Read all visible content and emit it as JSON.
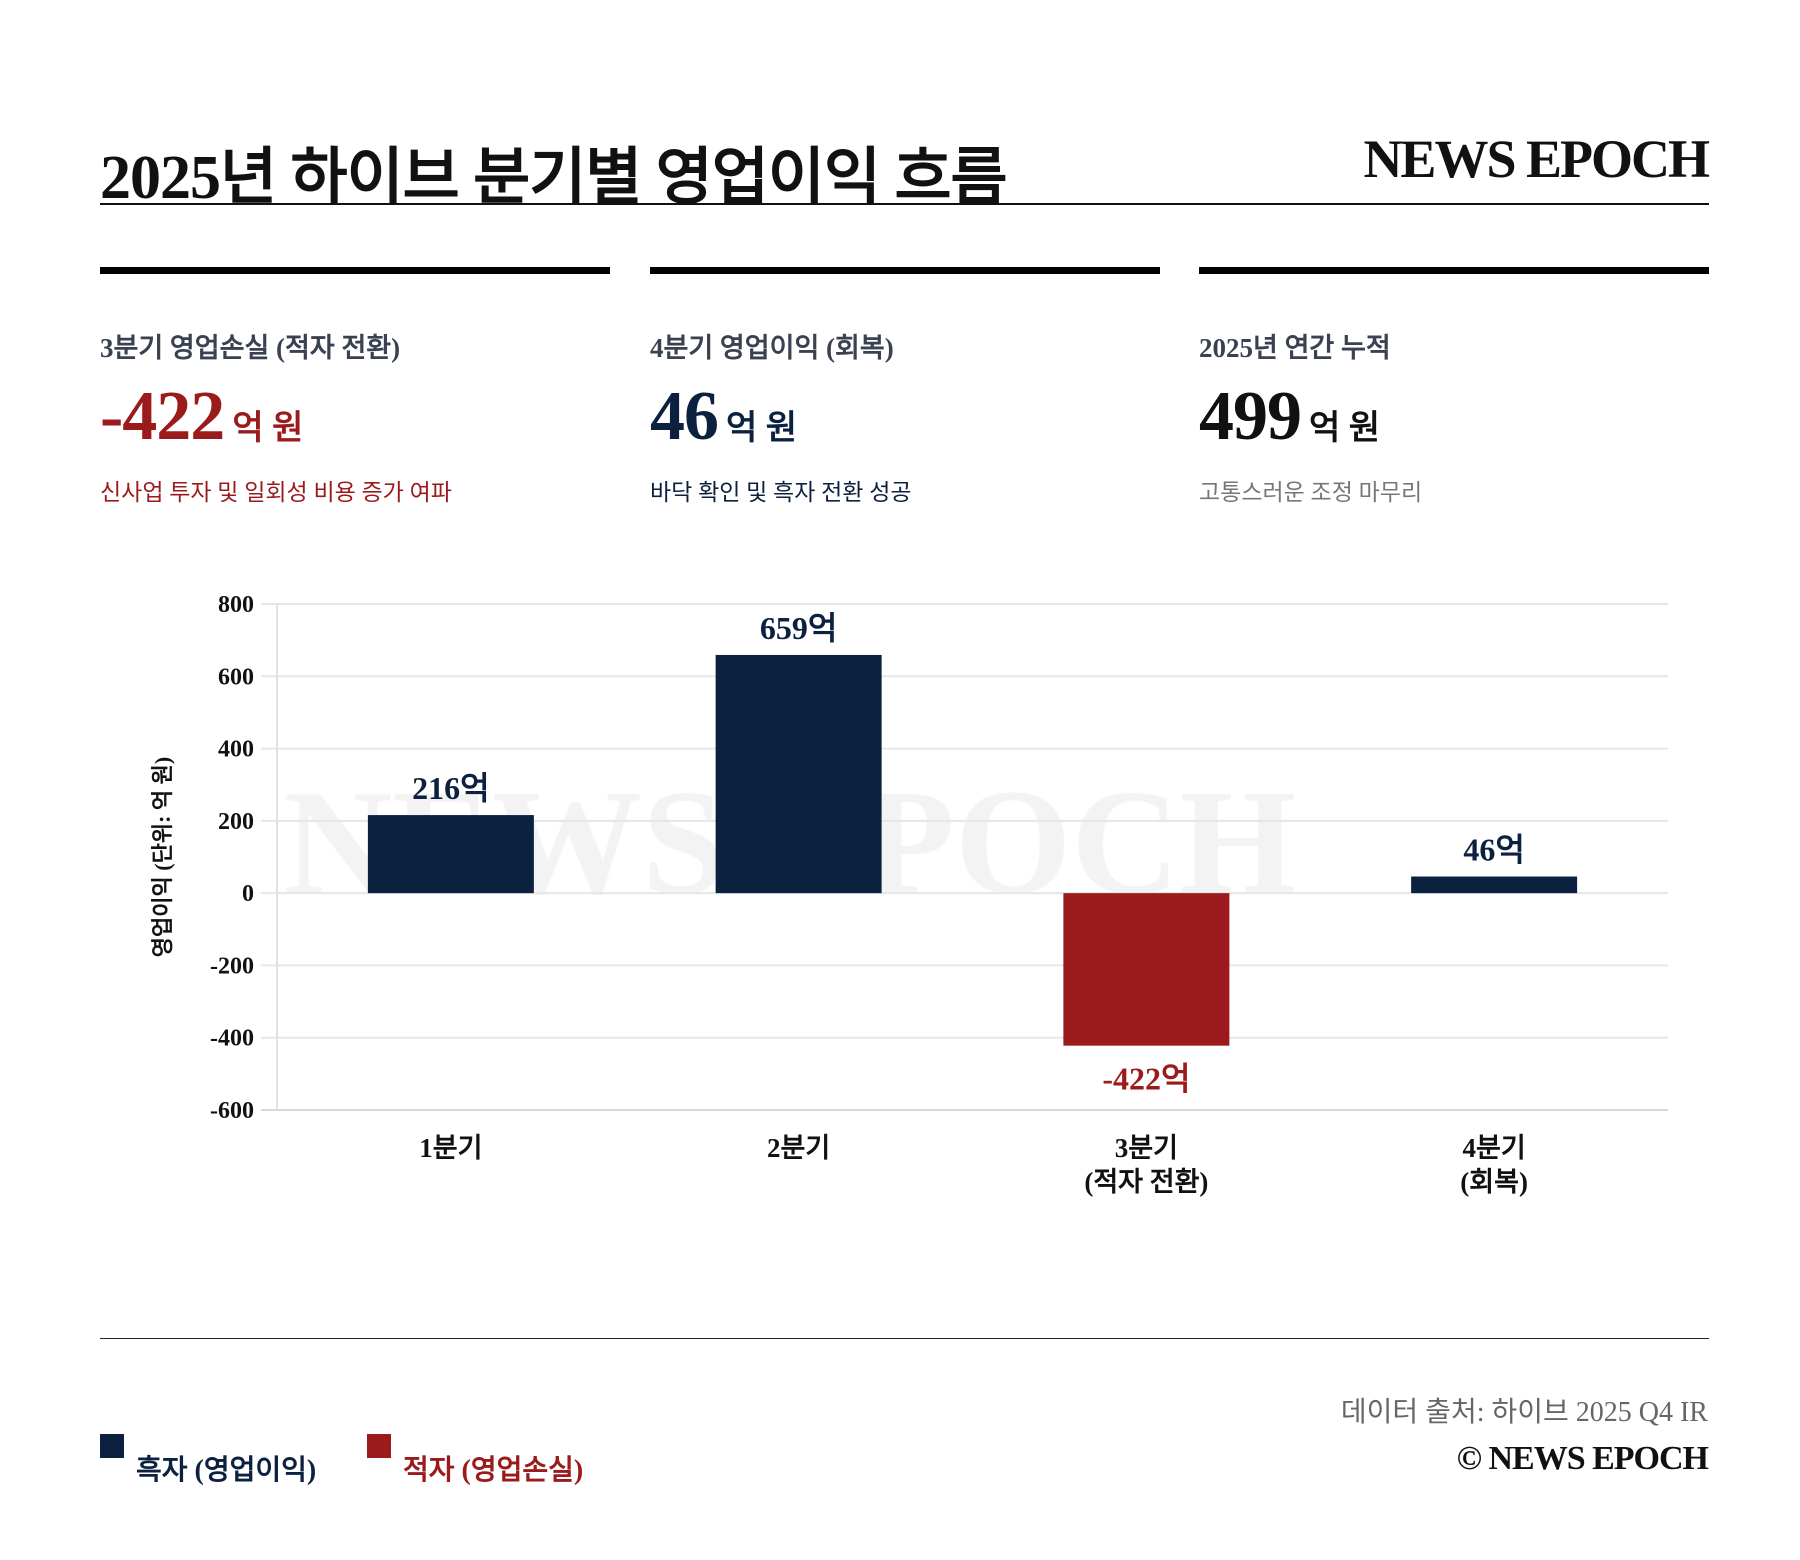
{
  "header": {
    "title": "2025년 하이브 분기별 영업이익 흐름",
    "brand": "NEWS EPOCH"
  },
  "colors": {
    "profit": "#0c2140",
    "loss": "#9b1b1d",
    "grid": "#e6e6e6",
    "text": "#111111"
  },
  "cards": [
    {
      "label": "3분기 영업손실 (적자 전환)",
      "number": "-422",
      "unit": "억 원",
      "sub": "신사업 투자 및 일회성 비용 증가 여파",
      "color": "#9b1b1d",
      "sub_color": "#9b1b1d"
    },
    {
      "label": "4분기 영업이익 (회복)",
      "number": "46",
      "unit": "억 원",
      "sub": "바닥 확인 및 흑자 전환 성공",
      "color": "#0c2140",
      "sub_color": "#0c2140"
    },
    {
      "label": "2025년 연간 누적",
      "number": "499",
      "unit": "억 원",
      "sub": "고통스러운 조정 마무리",
      "color": "#111111",
      "sub_color": "#777777"
    }
  ],
  "chart_data": {
    "type": "bar",
    "title": "",
    "watermark": "NEWS EPOCH",
    "categories": [
      [
        "1분기"
      ],
      [
        "2분기"
      ],
      [
        "3분기",
        "(적자 전환)"
      ],
      [
        "4분기",
        "(회복)"
      ]
    ],
    "values": [
      216,
      659,
      -422,
      46
    ],
    "data_labels": [
      "216억",
      "659억",
      "-422억",
      "46억"
    ],
    "ylabel": "영업이익 (단위: 억 원)",
    "xlabel": "",
    "ylim": [
      -600,
      800
    ],
    "yticks": [
      800,
      600,
      400,
      200,
      0,
      -200,
      -400,
      -600
    ],
    "grid": true
  },
  "legend": [
    {
      "label": "흑자 (영업이익)",
      "color": "#0c2140"
    },
    {
      "label": "적자 (영업손실)",
      "color": "#9b1b1d"
    }
  ],
  "footer": {
    "source": "데이터 출처: 하이브 2025 Q4 IR",
    "copyright": "© NEWS EPOCH"
  }
}
